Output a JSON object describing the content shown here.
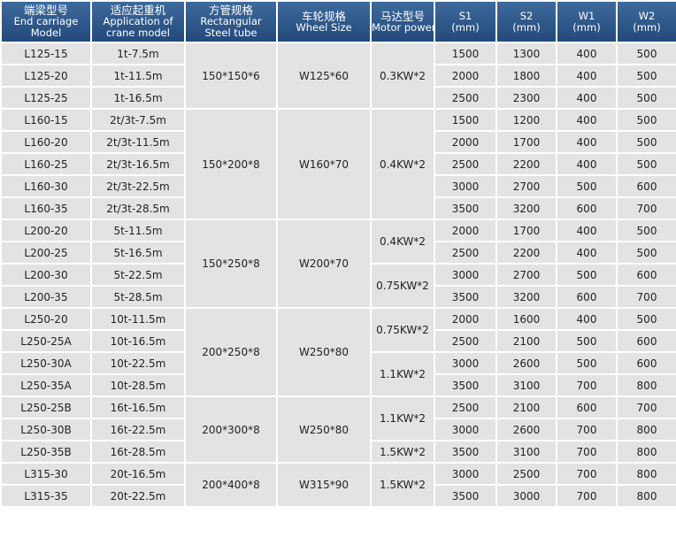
{
  "table": {
    "header": [
      [
        "端梁型号",
        "End carriage",
        "Model"
      ],
      [
        "适应起重机",
        "Application of",
        "crane model"
      ],
      [
        "方管规格",
        "Rectangular",
        "Steel tube"
      ],
      [
        "车轮规格",
        "Wheel Size"
      ],
      [
        "马达型号",
        "Motor power"
      ],
      [
        "S1",
        "(mm)"
      ],
      [
        "S2",
        "(mm)"
      ],
      [
        "W1",
        "(mm)"
      ],
      [
        "W2",
        "(mm)"
      ]
    ],
    "rows": [
      [
        "L125-15",
        "1t-7.5m",
        "150*150*6",
        "W125*60",
        "0.3KW*2",
        1500,
        1300,
        400,
        500
      ],
      [
        "L125-20",
        "1t-11.5m",
        null,
        null,
        null,
        2000,
        1800,
        400,
        500
      ],
      [
        "L125-25",
        "1t-16.5m",
        null,
        null,
        null,
        2500,
        2300,
        400,
        500
      ],
      [
        "L160-15",
        "2t/3t-7.5m",
        "150*200*8",
        "W160*70",
        "0.4KW*2",
        1500,
        1200,
        400,
        500
      ],
      [
        "L160-20",
        "2t/3t-11.5m",
        null,
        null,
        null,
        2000,
        1700,
        400,
        500
      ],
      [
        "L160-25",
        "2t/3t-16.5m",
        null,
        null,
        null,
        2500,
        2200,
        400,
        500
      ],
      [
        "L160-30",
        "2t/3t-22.5m",
        null,
        null,
        null,
        3000,
        2700,
        500,
        600
      ],
      [
        "L160-35",
        "2t/3t-28.5m",
        null,
        null,
        null,
        3500,
        3200,
        600,
        700
      ],
      [
        "L200-20",
        "5t-11.5m",
        "150*250*8",
        "W200*70",
        "0.4KW*2",
        2000,
        1700,
        400,
        500
      ],
      [
        "L200-25",
        "5t-16.5m",
        null,
        null,
        null,
        2500,
        2200,
        400,
        500
      ],
      [
        "L200-30",
        "5t-22.5m",
        null,
        null,
        "0.75KW*2",
        3000,
        2700,
        500,
        600
      ],
      [
        "L200-35",
        "5t-28.5m",
        null,
        null,
        null,
        3500,
        3200,
        600,
        700
      ],
      [
        "L250-20",
        "10t-11.5m",
        "200*250*8",
        "W250*80",
        "0.75KW*2",
        2000,
        1600,
        400,
        500
      ],
      [
        "L250-25A",
        "10t-16.5m",
        null,
        null,
        null,
        2500,
        2100,
        500,
        600
      ],
      [
        "L250-30A",
        "10t-22.5m",
        null,
        null,
        "1.1KW*2",
        3000,
        2600,
        500,
        600
      ],
      [
        "L250-35A",
        "10t-28.5m",
        null,
        null,
        null,
        3500,
        3100,
        700,
        800
      ],
      [
        "L250-25B",
        "16t-16.5m",
        "200*300*8",
        "W250*80",
        "1.1KW*2",
        2500,
        2100,
        600,
        700
      ],
      [
        "L250-30B",
        "16t-22.5m",
        null,
        null,
        null,
        3000,
        2600,
        700,
        800
      ],
      [
        "L250-35B",
        "16t-28.5m",
        null,
        null,
        "1.5KW*2",
        3500,
        3100,
        700,
        800
      ],
      [
        "L315-30",
        "20t-16.5m",
        "200*400*8",
        "W315*90",
        "1.5KW*2",
        3000,
        2500,
        700,
        800
      ],
      [
        "L315-35",
        "20t-22.5m",
        null,
        null,
        null,
        3500,
        3000,
        700,
        800
      ]
    ]
  }
}
